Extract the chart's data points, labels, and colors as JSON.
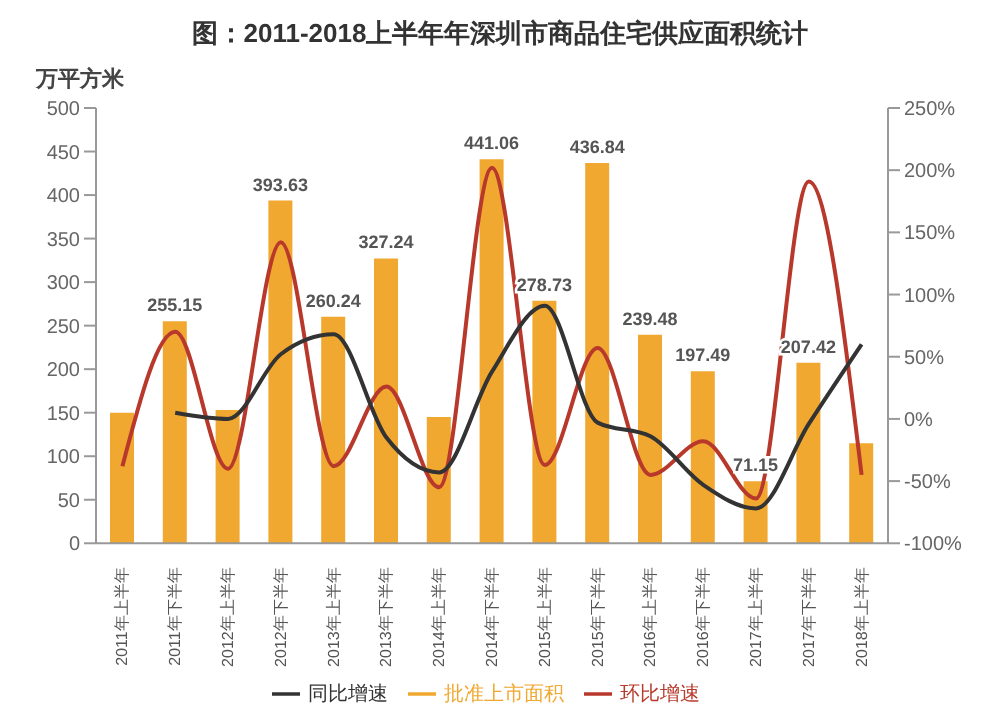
{
  "chart_data": {
    "type": "bar",
    "title": "图：2011-2018上半年年深圳市商品住宅供应面积统计",
    "ylabel": "万平方米",
    "categories": [
      "2011年上半年",
      "2011年下半年",
      "2012年上半年",
      "2012年下半年",
      "2013年上半年",
      "2013年下半年",
      "2014年上半年",
      "2014年下半年",
      "2015年上半年",
      "2015年下半年",
      "2016年上半年",
      "2016年下半年",
      "2017年上半年",
      "2017年下半年",
      "2018年上半年"
    ],
    "series": [
      {
        "name": "批准上市面积",
        "color": "#f0a830",
        "values": [
          150,
          255.15,
          153,
          393.63,
          260.24,
          327.24,
          145,
          441.06,
          278.73,
          436.84,
          239.48,
          197.49,
          71.15,
          207.42,
          115
        ],
        "value_labels": [
          null,
          "255.15",
          null,
          "393.63",
          "260.24",
          "327.24",
          null,
          "441.06",
          "278.73",
          "436.84",
          "239.48",
          "197.49",
          "71.15",
          "207.42",
          null
        ]
      },
      {
        "name": "环比增速",
        "type": "line",
        "axis": "y2",
        "color": "#b8392b",
        "values": [
          -38,
          70,
          -40,
          142,
          -38,
          26,
          -55,
          202,
          -37,
          57,
          -45,
          -18,
          -64,
          191,
          -45
        ]
      },
      {
        "name": "同比增速",
        "type": "line",
        "axis": "y2",
        "color": "#333333",
        "values": [
          null,
          5,
          0,
          52,
          68,
          -15,
          -43,
          38,
          91,
          -3,
          -14,
          -53,
          -72,
          -4,
          60
        ]
      }
    ],
    "ylim": [
      0,
      500
    ],
    "yticks": [
      0,
      50,
      100,
      150,
      200,
      250,
      300,
      350,
      400,
      450,
      500
    ],
    "y2lim": [
      -100,
      250
    ],
    "y2ticks": [
      {
        "value": -100,
        "label": "-100%"
      },
      {
        "value": -50,
        "label": "-50%"
      },
      {
        "value": 0,
        "label": "0%"
      },
      {
        "value": 50,
        "label": "50%"
      },
      {
        "value": 100,
        "label": "100%"
      },
      {
        "value": 150,
        "label": "150%"
      },
      {
        "value": 200,
        "label": "200%"
      },
      {
        "value": 250,
        "label": "250%"
      }
    ],
    "grid": false,
    "legend": "bottom",
    "marker": "none",
    "line_style": "solid"
  }
}
